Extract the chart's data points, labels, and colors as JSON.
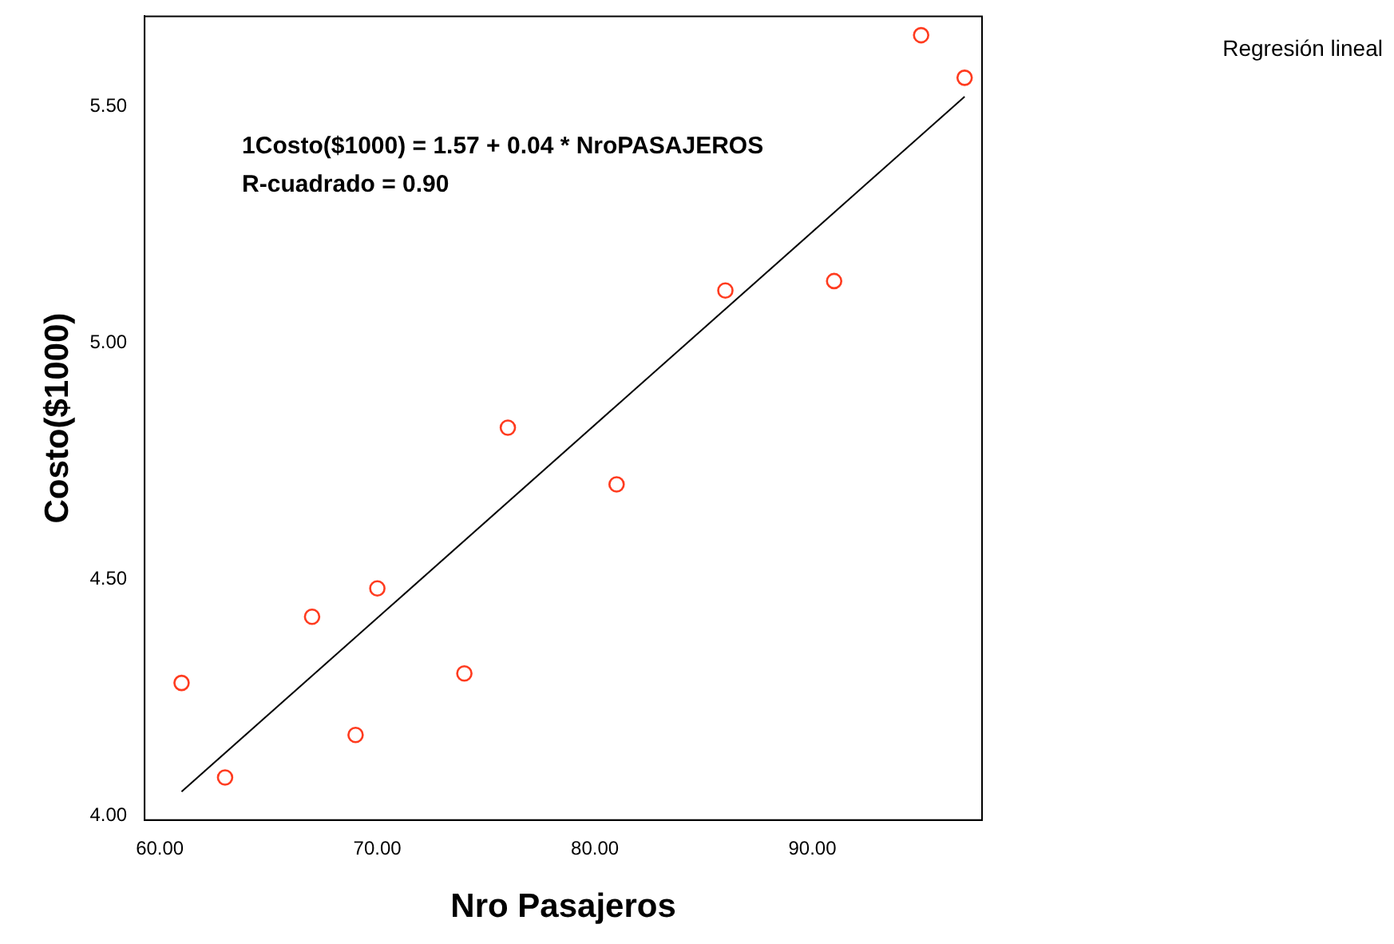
{
  "chart_data": {
    "type": "scatter",
    "xlabel": "Nro Pasajeros",
    "ylabel": "Costo($1000)",
    "x": [
      61,
      63,
      67,
      69,
      70,
      74,
      76,
      81,
      86,
      91,
      95,
      97
    ],
    "series": [
      {
        "color": "#ff3b1f",
        "marker": "circle",
        "values": [
          4.28,
          4.08,
          4.42,
          4.17,
          4.48,
          4.3,
          4.82,
          4.7,
          5.11,
          5.13,
          5.65,
          5.56
        ]
      },
      {
        "type": "line",
        "color": "#000000",
        "marker": "none",
        "x": [
          61,
          97
        ],
        "values": [
          4.05,
          5.52
        ]
      }
    ],
    "xlim": [
      59.3,
      97.8
    ],
    "ylim": [
      3.99,
      5.69
    ],
    "xticks": [
      {
        "value": 60,
        "label": "60.00"
      },
      {
        "value": 70,
        "label": "70.00"
      },
      {
        "value": 80,
        "label": "80.00"
      },
      {
        "value": 90,
        "label": "90.00"
      }
    ],
    "yticks": [
      {
        "value": 4,
        "label": "4.00"
      },
      {
        "value": 4.5,
        "label": "4.50"
      },
      {
        "value": 5,
        "label": "5.00"
      },
      {
        "value": 5.5,
        "label": "5.50"
      }
    ],
    "grid": false,
    "line_style": "solid",
    "annotations": [
      "1Costo($1000) = 1.57 + 0.04 * NroPASAJEROS",
      "R-cuadrado = 0.90",
      "Regresión lineal"
    ]
  }
}
